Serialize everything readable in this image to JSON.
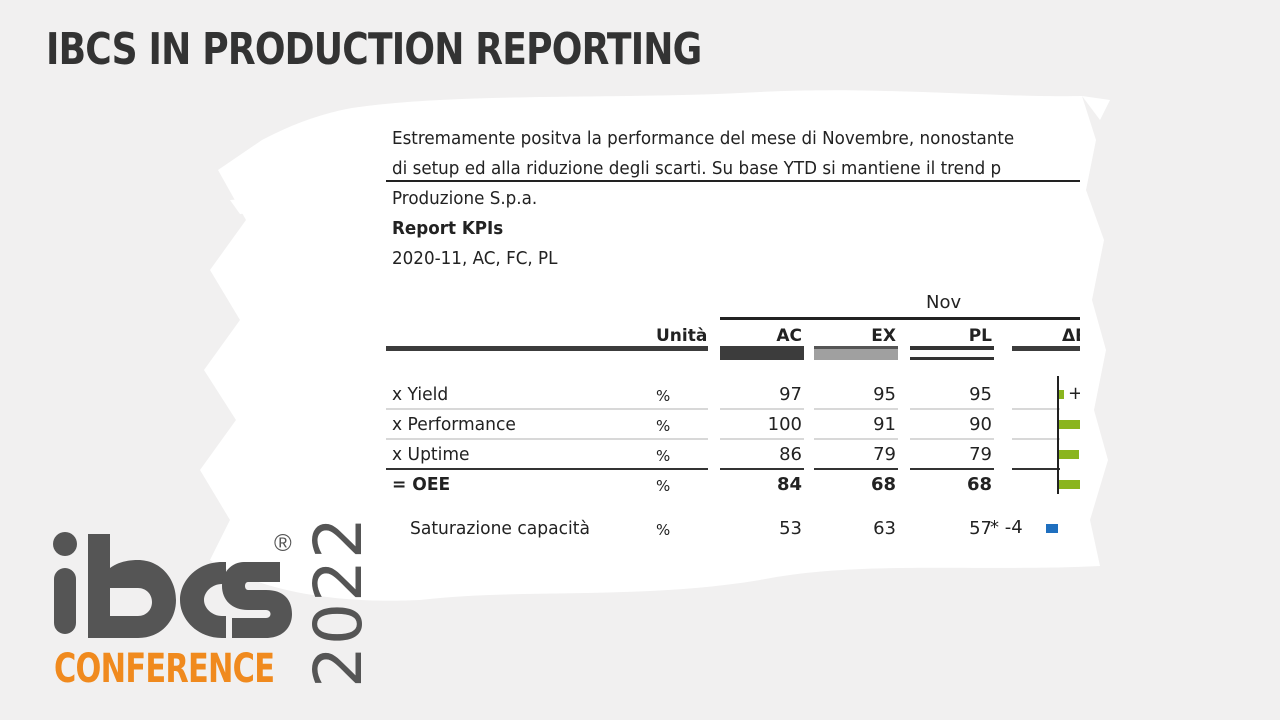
{
  "slide": {
    "title": "IBCS IN PRODUCTION REPORTING"
  },
  "report": {
    "comment_line1": "Estremamente positva la performance del mese di Novembre, nonostante",
    "comment_line2": "di setup ed alla riduzione degli scarti. Su base YTD si mantiene il trend p",
    "company": "Produzione S.p.a.",
    "report_title": "Report KPIs",
    "scope": "2020-11, AC, FC, PL",
    "period": "Nov",
    "headers": {
      "unit": "Unità",
      "ac": "AC",
      "ex": "EX",
      "pl": "PL",
      "delta": "ΔE"
    },
    "rows": [
      {
        "label": "x Yield",
        "unit": "%",
        "ac": "97",
        "ex": "95",
        "pl": "95",
        "bold": false,
        "delta": 2,
        "delta_label": "+"
      },
      {
        "label": "x Performance",
        "unit": "%",
        "ac": "100",
        "ex": "91",
        "pl": "90",
        "bold": false,
        "delta": 9,
        "delta_label": ""
      },
      {
        "label": "x Uptime",
        "unit": "%",
        "ac": "86",
        "ex": "79",
        "pl": "79",
        "bold": false,
        "delta": 7,
        "delta_label": ""
      },
      {
        "label": "= OEE",
        "unit": "%",
        "ac": "84",
        "ex": "68",
        "pl": "68",
        "bold": true,
        "delta": 16,
        "delta_label": ""
      },
      {
        "label": "Saturazione capacità",
        "unit": "%",
        "ac": "53",
        "ex": "63",
        "pl": "57",
        "bold": false,
        "delta": -4,
        "delta_label": "* -4"
      }
    ],
    "colors": {
      "positive": "#8ab51e",
      "negative": "#1f6fbf",
      "ac_bar": "#3c3c3c",
      "ex_bar": "#a0a0a0"
    }
  },
  "logo": {
    "wordmark": "ibcs",
    "registered": "®",
    "conference": "CONFERENCE",
    "year": "2022",
    "accent": "#f08a1e"
  }
}
